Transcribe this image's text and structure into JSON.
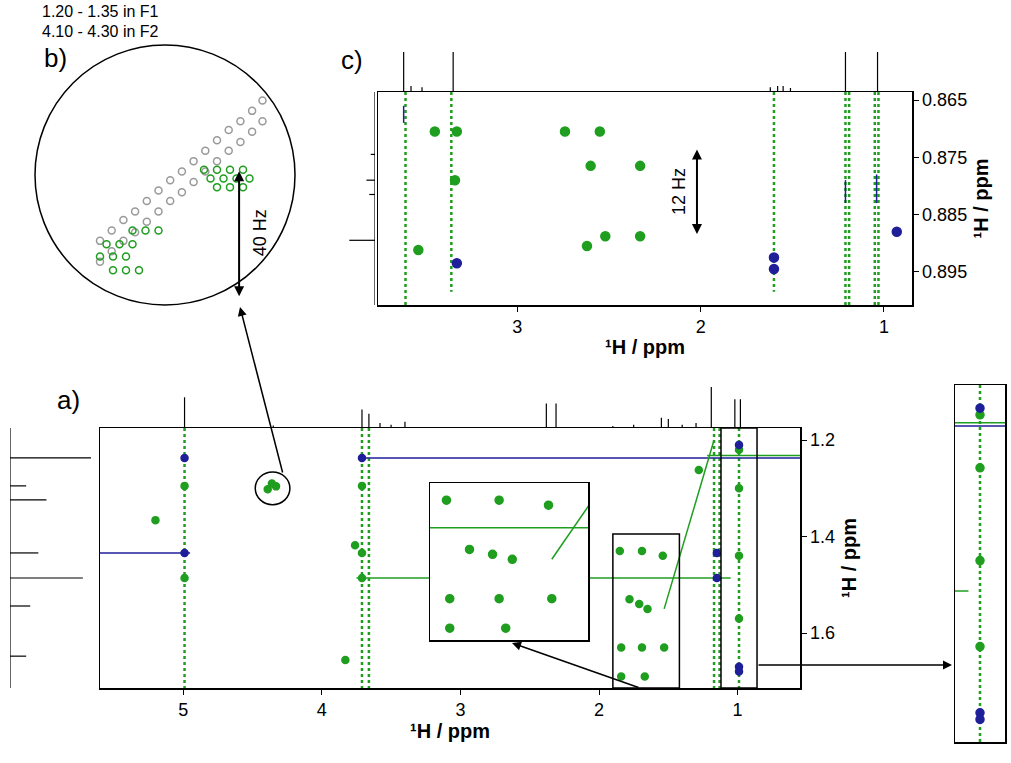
{
  "chart_data": [
    {
      "type": "scatter",
      "label": "a)",
      "x_title": "¹H / ppm",
      "y_title": "¹H / ppm",
      "xlim": [
        5.6,
        0.55
      ],
      "ylim": [
        1.714,
        1.175
      ],
      "xticks": [
        5,
        4,
        3,
        2,
        1
      ],
      "yticks": [
        1.2,
        1.4,
        1.6
      ],
      "series": [
        {
          "type": "line",
          "color": "#1f9e1f",
          "line_style": "dot",
          "x": [
            4.99,
            4.99,
            null,
            3.71,
            3.71,
            null,
            3.66,
            3.66,
            null,
            1.17,
            1.17,
            null,
            1.13,
            1.13,
            null,
            0.99,
            0.99
          ],
          "y": [
            1.175,
            1.714,
            null,
            1.175,
            1.714,
            null,
            1.175,
            1.714,
            null,
            1.175,
            1.714,
            null,
            1.175,
            1.714,
            null,
            1.175,
            1.714
          ]
        },
        {
          "type": "line",
          "color": "#1f1f9a",
          "line_style": "solid",
          "x": [
            3.71,
            0.55,
            null,
            5.6,
            4.95
          ],
          "y": [
            1.237,
            1.237,
            null,
            1.434,
            1.434
          ]
        },
        {
          "type": "line",
          "color": "#1f9e1f",
          "line_style": "solid",
          "x": [
            3.75,
            1.05,
            null,
            1.53,
            1.17,
            null,
            1.22,
            0.55
          ],
          "y": [
            1.486,
            1.486,
            null,
            1.55,
            1.2,
            null,
            1.232,
            1.232
          ]
        },
        {
          "type": "scatter",
          "color": "#1f9e1f",
          "marker": "circle",
          "x": [
            5.2,
            3.76,
            3.83,
            4.36,
            4.33,
            4.39,
            1.85,
            1.69,
            1.54,
            1.78,
            1.71,
            1.65,
            1.84,
            1.69,
            1.53,
            1.84,
            1.67,
            0.99,
            0.99,
            0.99,
            0.99,
            1.28,
            3.71,
            3.71,
            3.71,
            4.99,
            4.99
          ],
          "y": [
            1.366,
            1.418,
            1.656,
            1.29,
            1.296,
            1.302,
            1.43,
            1.43,
            1.44,
            1.53,
            1.54,
            1.55,
            1.63,
            1.63,
            1.63,
            1.69,
            1.69,
            1.22,
            1.3,
            1.44,
            1.57,
            1.262,
            1.295,
            1.434,
            1.486,
            1.295,
            1.486
          ]
        },
        {
          "type": "scatter",
          "color": "#1f1f9a",
          "marker": "circle",
          "x": [
            3.71,
            4.99,
            4.99,
            1.15,
            1.15,
            0.99,
            0.99,
            0.99
          ],
          "y": [
            1.237,
            1.237,
            1.434,
            1.434,
            1.486,
            1.21,
            1.67,
            1.68
          ]
        }
      ],
      "projections": {
        "top": {
          "x": [
            4.99,
            4.35,
            3.71,
            3.66,
            3.58,
            3.5,
            3.4,
            2.38,
            2.31,
            1.9,
            1.75,
            1.55,
            1.5,
            1.4,
            1.3,
            1.19,
            1.02,
            0.98
          ],
          "values": [
            0.75,
            0.06,
            0.45,
            0.35,
            0.12,
            0.08,
            0.15,
            0.6,
            0.6,
            0.05,
            0.08,
            0.25,
            0.22,
            0.08,
            0.12,
            1.0,
            0.7,
            0.7
          ],
          "lim": [
            0,
            1.05
          ],
          "color": "#000000"
        },
        "left": {
          "y": [
            1.237,
            1.295,
            1.324,
            1.434,
            1.486,
            1.544,
            1.648
          ],
          "values": [
            1.0,
            0.2,
            0.45,
            0.35,
            0.9,
            0.25,
            0.2
          ],
          "lim": [
            0,
            1.05
          ],
          "color": "#000000"
        }
      },
      "highlight": {
        "xlim": [
          4.48,
          4.23
        ],
        "ylim": [
          1.334,
          1.266
        ]
      },
      "insets": [
        {
          "xlim": [
            1.9,
            1.42
          ],
          "ylim": [
            1.714,
            1.395
          ],
          "tick_labels": false
        },
        {
          "xlim": [
            1.12,
            0.86
          ],
          "ylim": [
            1.714,
            1.175
          ],
          "tick_labels": false
        }
      ]
    },
    {
      "type": "scatter",
      "label": "b)",
      "annotations": [
        "1.20 - 1.35 in F1",
        "4.10 - 4.30 in F2"
      ],
      "xlim": [
        4.3,
        4.1
      ],
      "ylim": [
        1.35,
        1.2
      ],
      "tick_labels": false,
      "series": [
        {
          "type": "scatter",
          "color": "#9a9a9a",
          "marker": "circle-open",
          "x": [
            4.25,
            4.241,
            4.232,
            4.223,
            4.214,
            4.205,
            4.196,
            4.187,
            4.178,
            4.169,
            4.16,
            4.151,
            4.142,
            4.133,
            4.125,
            4.25,
            4.241,
            4.232,
            4.223,
            4.214,
            4.205,
            4.196,
            4.187,
            4.178,
            4.169,
            4.16,
            4.151,
            4.142,
            4.133,
            4.125
          ],
          "y": [
            1.325,
            1.319,
            1.313,
            1.308,
            1.302,
            1.296,
            1.29,
            1.285,
            1.279,
            1.273,
            1.267,
            1.261,
            1.256,
            1.25,
            1.244,
            1.313,
            1.307,
            1.301,
            1.296,
            1.29,
            1.284,
            1.278,
            1.273,
            1.267,
            1.261,
            1.255,
            1.249,
            1.244,
            1.238,
            1.232
          ]
        },
        {
          "type": "scatter",
          "color": "#1f9e1f",
          "marker": "circle-open",
          "x": [
            4.225,
            4.215,
            4.205,
            4.245,
            4.235,
            4.225,
            4.25,
            4.24,
            4.23,
            4.24,
            4.23,
            4.22,
            4.17,
            4.16,
            4.15,
            4.14,
            4.165,
            4.155,
            4.145,
            4.135,
            4.16,
            4.15,
            4.14
          ],
          "y": [
            1.307,
            1.307,
            1.307,
            1.315,
            1.315,
            1.315,
            1.322,
            1.322,
            1.322,
            1.33,
            1.33,
            1.33,
            1.272,
            1.272,
            1.272,
            1.272,
            1.277,
            1.277,
            1.277,
            1.277,
            1.282,
            1.282,
            1.282
          ]
        }
      ],
      "arrow": {
        "text": "40 Hz",
        "x": 4.143,
        "y": [
          1.272,
          1.345
        ]
      }
    },
    {
      "type": "scatter",
      "label": "c)",
      "x_title": "¹H / ppm",
      "y_title": "¹H / ppm",
      "xlim": [
        3.76,
        0.847
      ],
      "ylim": [
        0.9008,
        0.8636
      ],
      "xticks": [
        3,
        2,
        1
      ],
      "yticks": [
        0.865,
        0.875,
        0.885,
        0.895
      ],
      "series": [
        {
          "type": "line",
          "color": "#1f9e1f",
          "line_style": "dot",
          "x": [
            3.61,
            3.61,
            null,
            3.36,
            3.36,
            null,
            1.6,
            1.6,
            null,
            1.21,
            1.21,
            null,
            1.19,
            1.19,
            null,
            1.05,
            1.05,
            null,
            1.03,
            1.03
          ],
          "y": [
            0.8636,
            0.9008,
            null,
            0.8636,
            0.8985,
            null,
            0.8636,
            0.8985,
            null,
            0.8636,
            0.9008,
            null,
            0.8636,
            0.9008,
            null,
            0.8636,
            0.9008,
            null,
            0.8636,
            0.9008
          ]
        },
        {
          "type": "line",
          "color": "#1f1f9a",
          "line_style": "solid",
          "x": [
            3.62,
            3.62,
            null,
            1.21,
            1.21,
            null,
            1.04,
            1.04
          ],
          "y": [
            0.866,
            0.869,
            null,
            0.879,
            0.883,
            null,
            0.878,
            0.883
          ]
        },
        {
          "type": "scatter",
          "color": "#1f9e1f",
          "marker": "circle",
          "x": [
            3.45,
            3.33,
            3.54,
            3.34,
            2.74,
            2.55,
            2.6,
            2.33,
            2.52,
            2.33,
            2.62
          ],
          "y": [
            0.8705,
            0.8705,
            0.8912,
            0.879,
            0.8705,
            0.8705,
            0.8765,
            0.8765,
            0.8888,
            0.8888,
            0.8905
          ]
        },
        {
          "type": "scatter",
          "color": "#1f1f9a",
          "marker": "circle",
          "x": [
            3.33,
            1.6,
            1.6,
            0.93
          ],
          "y": [
            0.8935,
            0.8945,
            0.8925,
            0.888
          ]
        }
      ],
      "projections": {
        "top": {
          "x": [
            3.62,
            3.58,
            3.52,
            3.35,
            1.62,
            1.58,
            1.55,
            1.51,
            1.21,
            1.035
          ],
          "values": [
            1.0,
            0.15,
            0.12,
            1.0,
            0.12,
            0.15,
            0.15,
            0.1,
            1.0,
            1.0
          ],
          "lim": [
            0,
            1.05
          ],
          "color": "#000000"
        },
        "left": {
          "y": [
            0.8745,
            0.879,
            0.8815,
            0.8895
          ],
          "values": [
            0.15,
            0.3,
            0.2,
            0.9
          ],
          "lim": [
            0,
            1.05
          ],
          "color": "#000000"
        }
      },
      "arrow": {
        "text": "12 Hz",
        "x": 2.02,
        "y": [
          0.8734,
          0.8884
        ]
      }
    }
  ]
}
